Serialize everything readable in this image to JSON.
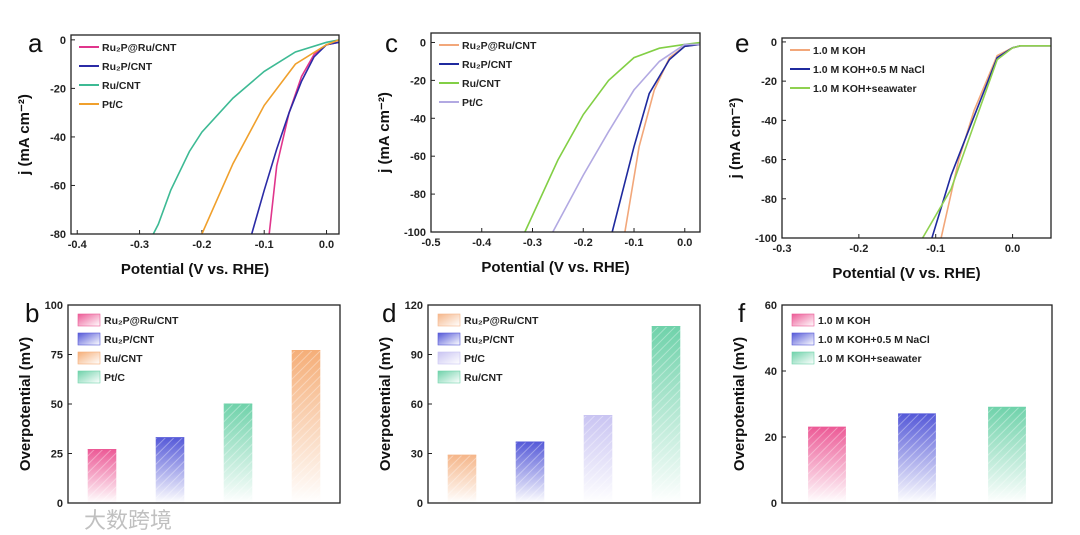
{
  "watermark": "大数跨境",
  "chart_data": [
    {
      "panel": "a",
      "type": "line",
      "xlabel": "Potential (V vs. RHE)",
      "ylabel": "j (mA cm⁻²)",
      "xlim": [
        -0.41,
        0.02
      ],
      "ylim": [
        -80,
        2
      ],
      "xticks": [
        -0.4,
        -0.3,
        -0.2,
        -0.1,
        0.0
      ],
      "xtick_labels": [
        "-0.4",
        "-0.3",
        "-0.2",
        "-0.1",
        "0.0"
      ],
      "yticks": [
        0,
        -20,
        -40,
        -60,
        -80
      ],
      "ytick_labels": [
        "0",
        "-20",
        "-40",
        "-60",
        "-80"
      ],
      "legend": "top-left",
      "series": [
        {
          "name": "Ru₂P@Ru/CNT",
          "color": "#e0358c",
          "x": [
            0.02,
            0,
            -0.02,
            -0.04,
            -0.06,
            -0.08,
            -0.092
          ],
          "y": [
            -1,
            -2,
            -6,
            -15,
            -30,
            -52,
            -80
          ]
        },
        {
          "name": "Ru₂P/CNT",
          "color": "#2b2ba6",
          "x": [
            0.02,
            0,
            -0.02,
            -0.04,
            -0.06,
            -0.08,
            -0.1,
            -0.12
          ],
          "y": [
            -1,
            -2,
            -7,
            -17,
            -30,
            -45,
            -62,
            -80
          ]
        },
        {
          "name": "Ru/CNT",
          "color": "#3dba94",
          "x": [
            0.02,
            0,
            -0.05,
            -0.1,
            -0.15,
            -0.2,
            -0.22,
            -0.25,
            -0.27,
            -0.278
          ],
          "y": [
            0,
            -1,
            -5,
            -13,
            -24,
            -38,
            -46,
            -62,
            -76,
            -80
          ]
        },
        {
          "name": "Pt/C",
          "color": "#f0a02c",
          "x": [
            0.02,
            0,
            -0.05,
            -0.1,
            -0.15,
            -0.2
          ],
          "y": [
            0,
            -2,
            -10,
            -27,
            -51,
            -80
          ]
        }
      ]
    },
    {
      "panel": "c",
      "type": "line",
      "xlabel": "Potential (V vs. RHE)",
      "ylabel": "j (mA cm⁻²)",
      "xlim": [
        -0.5,
        0.03
      ],
      "ylim": [
        -100,
        5
      ],
      "xticks": [
        -0.5,
        -0.4,
        -0.3,
        -0.2,
        -0.1,
        0.0
      ],
      "xtick_labels": [
        "-0.5",
        "-0.4",
        "-0.3",
        "-0.2",
        "-0.1",
        "0.0"
      ],
      "yticks": [
        0,
        -20,
        -40,
        -60,
        -80,
        -100
      ],
      "ytick_labels": [
        "0",
        "-20",
        "-40",
        "-60",
        "-80",
        "-100"
      ],
      "legend": "top-left",
      "series": [
        {
          "name": "Ru₂P@Ru/CNT",
          "color": "#f2a77a",
          "x": [
            0.03,
            0,
            -0.03,
            -0.06,
            -0.09,
            -0.118
          ],
          "y": [
            -1,
            -2,
            -8,
            -25,
            -55,
            -100
          ]
        },
        {
          "name": "Ru₂P/CNT",
          "color": "#1f2a9e",
          "x": [
            0.03,
            0,
            -0.03,
            -0.07,
            -0.1,
            -0.143
          ],
          "y": [
            -1,
            -2,
            -9,
            -27,
            -55,
            -100
          ]
        },
        {
          "name": "Ru/CNT",
          "color": "#82cf45",
          "x": [
            0.03,
            0,
            -0.05,
            -0.1,
            -0.15,
            -0.2,
            -0.25,
            -0.315
          ],
          "y": [
            0,
            -1,
            -3,
            -8,
            -20,
            -38,
            -62,
            -100
          ]
        },
        {
          "name": "Pt/C",
          "color": "#b2a9e2",
          "x": [
            0.03,
            0,
            -0.05,
            -0.1,
            -0.15,
            -0.2,
            -0.26
          ],
          "y": [
            -1,
            -1,
            -10,
            -25,
            -47,
            -70,
            -100
          ]
        }
      ]
    },
    {
      "panel": "e",
      "type": "line",
      "xlabel": "Potential (V vs. RHE)",
      "ylabel": "j (mA cm⁻²)",
      "xlim": [
        -0.3,
        0.05
      ],
      "ylim": [
        -100,
        2
      ],
      "xticks": [
        -0.3,
        -0.2,
        -0.1,
        0.0
      ],
      "xtick_labels": [
        "-0.3",
        "-0.2",
        "-0.1",
        "0.0"
      ],
      "yticks": [
        0,
        -20,
        -40,
        -60,
        -80,
        -100
      ],
      "ytick_labels": [
        "0",
        "-20",
        "-40",
        "-60",
        "-80",
        "-100"
      ],
      "legend": "top-left",
      "series": [
        {
          "name": "1.0 M KOH",
          "color": "#f2a77a",
          "x": [
            0.05,
            0.01,
            0,
            -0.02,
            -0.05,
            -0.07,
            -0.093
          ],
          "y": [
            -2,
            -2,
            -3,
            -7,
            -35,
            -60,
            -100
          ]
        },
        {
          "name": "1.0 M KOH+0.5 M NaCl",
          "color": "#1f2a9e",
          "x": [
            0.05,
            0.01,
            0,
            -0.02,
            -0.05,
            -0.08,
            -0.105
          ],
          "y": [
            -2,
            -2,
            -3,
            -8,
            -38,
            -68,
            -100
          ]
        },
        {
          "name": "1.0 M KOH+seawater",
          "color": "#8fd150",
          "x": [
            0.05,
            0.01,
            0,
            -0.02,
            -0.05,
            -0.08,
            -0.117
          ],
          "y": [
            -2,
            -2,
            -3,
            -9,
            -42,
            -75,
            -100
          ]
        }
      ]
    },
    {
      "panel": "b",
      "type": "bar",
      "ylabel": "Overpotential (mV)",
      "ylim": [
        0,
        100
      ],
      "yticks": [
        0,
        25,
        50,
        75,
        100
      ],
      "ytick_labels": [
        "0",
        "25",
        "50",
        "75",
        "100"
      ],
      "legend": "top-left",
      "legend_entries": [
        {
          "name": "Ru₂P@Ru/CNT",
          "color": "#ec5a96"
        },
        {
          "name": "Ru₂P/CNT",
          "color": "#5559d8"
        },
        {
          "name": "Ru/CNT",
          "color": "#f5ae78"
        },
        {
          "name": "Pt/C",
          "color": "#6fd2aa"
        }
      ],
      "categories": [
        "Ru₂P@Ru/CNT",
        "Ru₂P/CNT",
        "Pt/C",
        "Ru/CNT"
      ],
      "values": [
        27,
        33,
        50,
        77
      ],
      "colors": [
        "#ec5a96",
        "#5559d8",
        "#6fd2aa",
        "#f5ae78"
      ]
    },
    {
      "panel": "d",
      "type": "bar",
      "ylabel": "Overpotential (mV)",
      "ylim": [
        0,
        120
      ],
      "yticks": [
        0,
        30,
        60,
        90,
        120
      ],
      "ytick_labels": [
        "0",
        "30",
        "60",
        "90",
        "120"
      ],
      "legend": "top-left",
      "legend_entries": [
        {
          "name": "Ru₂P@Ru/CNT",
          "color": "#f5b68a"
        },
        {
          "name": "Ru₂P/CNT",
          "color": "#5559d8"
        },
        {
          "name": "Pt/C",
          "color": "#c9c4f2"
        },
        {
          "name": "Ru/CNT",
          "color": "#6fd2aa"
        }
      ],
      "categories": [
        "Ru₂P@Ru/CNT",
        "Ru₂P/CNT",
        "Pt/C",
        "Ru/CNT"
      ],
      "values": [
        29,
        37,
        53,
        107
      ],
      "colors": [
        "#f5b68a",
        "#5559d8",
        "#c9c4f2",
        "#6fd2aa"
      ]
    },
    {
      "panel": "f",
      "type": "bar",
      "ylabel": "Overpotential (mV)",
      "ylim": [
        0,
        60
      ],
      "yticks": [
        0,
        20,
        40,
        60
      ],
      "ytick_labels": [
        "0",
        "20",
        "40",
        "60"
      ],
      "legend": "top-left",
      "legend_entries": [
        {
          "name": "1.0 M KOH",
          "color": "#ec5a96"
        },
        {
          "name": "1.0 M KOH+0.5 M NaCl",
          "color": "#5559d8"
        },
        {
          "name": "1.0 M KOH+seawater",
          "color": "#6fd2aa"
        }
      ],
      "categories": [
        "1.0 M KOH",
        "1.0 M KOH+0.5 M NaCl",
        "1.0 M KOH+seawater"
      ],
      "values": [
        23,
        27,
        29
      ],
      "colors": [
        "#ec5a96",
        "#5559d8",
        "#6fd2aa"
      ]
    }
  ]
}
